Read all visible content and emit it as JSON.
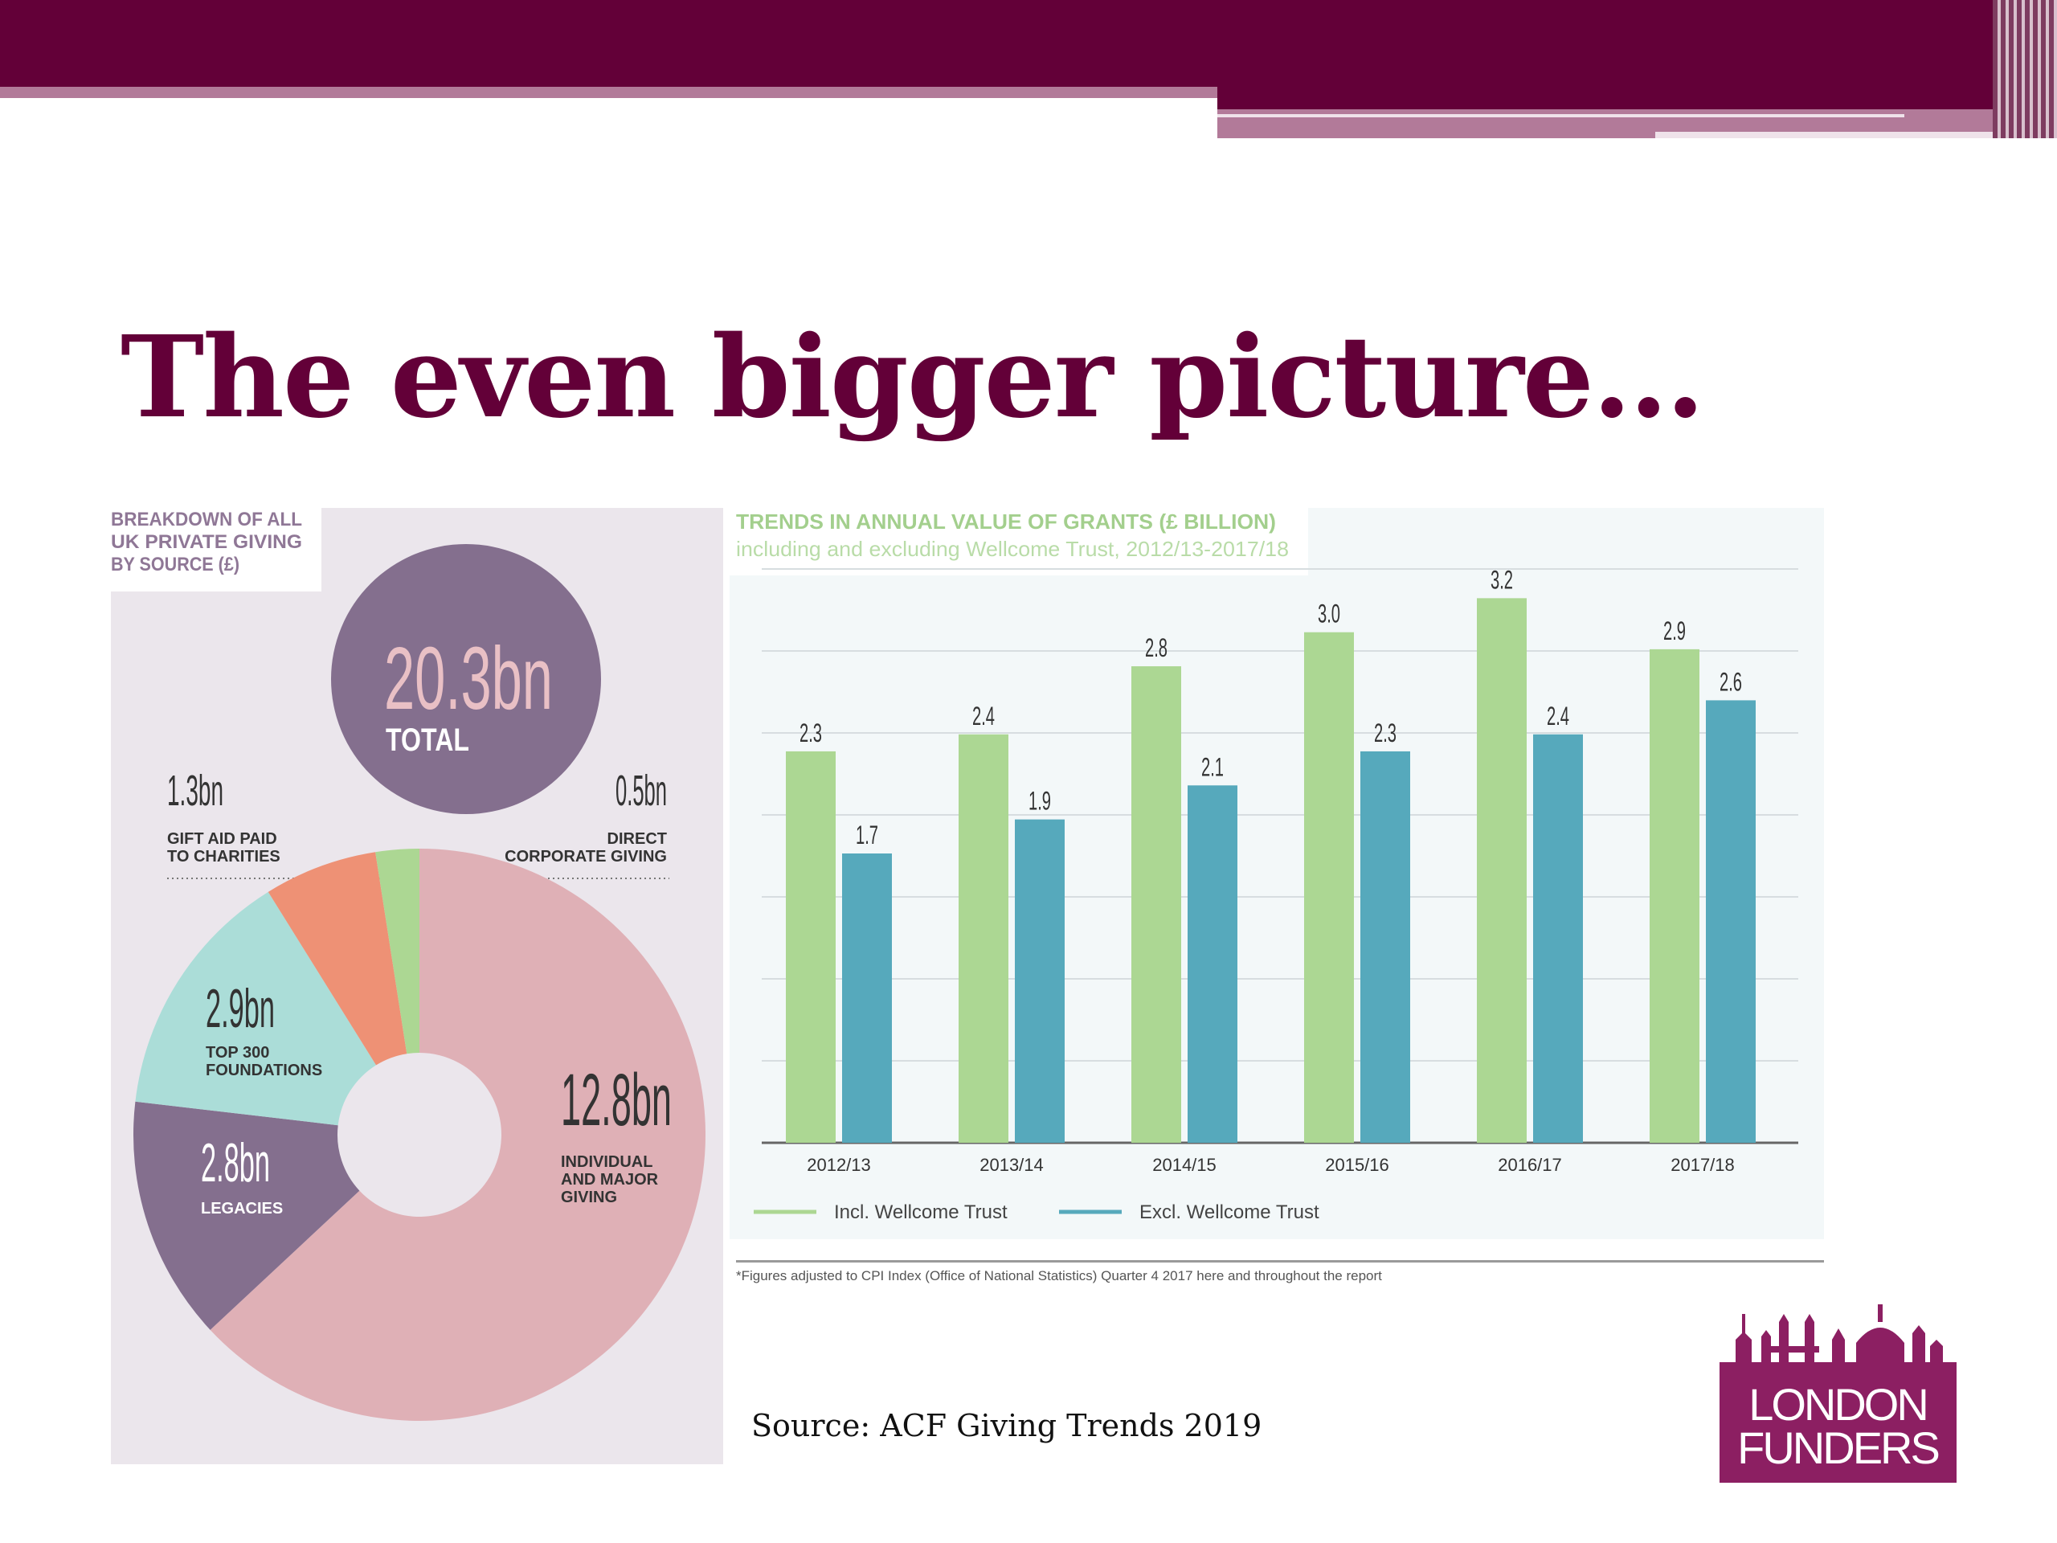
{
  "slide": {
    "title": "The even bigger picture…",
    "source": "Source: ACF Giving Trends 2019",
    "logo": {
      "line1": "LONDON",
      "line2": "FUNDERS"
    }
  },
  "colors": {
    "brand": "#630038",
    "brand_light": "#b27a99",
    "incl": "#acd793",
    "excl": "#56a9bc",
    "donut_individual": "#dfb0b6",
    "donut_legacies": "#846f8e",
    "donut_foundations": "#abddd8",
    "donut_giftaid": "#ee9175",
    "donut_corporate": "#acd793"
  },
  "chart_data": [
    {
      "type": "pie",
      "title": "BREAKDOWN OF ALL UK PRIVATE GIVING BY SOURCE (£)",
      "title_lines": [
        "BREAKDOWN OF ALL",
        "UK PRIVATE GIVING",
        "BY SOURCE (£)"
      ],
      "total": {
        "value_label": "20.3bn",
        "label": "TOTAL"
      },
      "slices": [
        {
          "label": "INDIVIDUAL AND MAJOR GIVING",
          "label_lines": [
            "INDIVIDUAL",
            "AND MAJOR",
            "GIVING"
          ],
          "value": 12.8,
          "value_label": "12.8bn",
          "color": "#dfb0b6"
        },
        {
          "label": "LEGACIES",
          "label_lines": [
            "LEGACIES"
          ],
          "value": 2.8,
          "value_label": "2.8bn",
          "color": "#846f8e"
        },
        {
          "label": "TOP 300 FOUNDATIONS",
          "label_lines": [
            "TOP 300",
            "FOUNDATIONS"
          ],
          "value": 2.9,
          "value_label": "2.9bn",
          "color": "#abddd8"
        },
        {
          "label": "GIFT AID PAID TO CHARITIES",
          "label_lines": [
            "GIFT AID PAID",
            "TO CHARITIES"
          ],
          "value": 1.3,
          "value_label": "1.3bn",
          "color": "#ee9175"
        },
        {
          "label": "DIRECT CORPORATE GIVING",
          "label_lines": [
            "DIRECT",
            "CORPORATE GIVING"
          ],
          "value": 0.5,
          "value_label": "0.5bn",
          "color": "#acd793"
        }
      ]
    },
    {
      "type": "bar",
      "title": "TRENDS IN ANNUAL VALUE OF GRANTS (£ BILLION)",
      "subtitle": "including and excluding Wellcome Trust, 2012/13-2017/18",
      "categories": [
        "2012/13",
        "2013/14",
        "2014/15",
        "2015/16",
        "2016/17",
        "2017/18"
      ],
      "series": [
        {
          "name": "Incl. Wellcome Trust",
          "values": [
            2.3,
            2.4,
            2.8,
            3.0,
            3.2,
            2.9
          ],
          "color": "#acd793"
        },
        {
          "name": "Excl. Wellcome Trust",
          "values": [
            1.7,
            1.9,
            2.1,
            2.3,
            2.4,
            2.6
          ],
          "color": "#56a9bc"
        }
      ],
      "ylim": [
        0,
        3.4
      ],
      "grid": true,
      "legend": "bottom-left",
      "footnote": "*Figures adjusted to CPI Index (Office of National Statistics) Quarter 4 2017 here and throughout the report"
    }
  ]
}
